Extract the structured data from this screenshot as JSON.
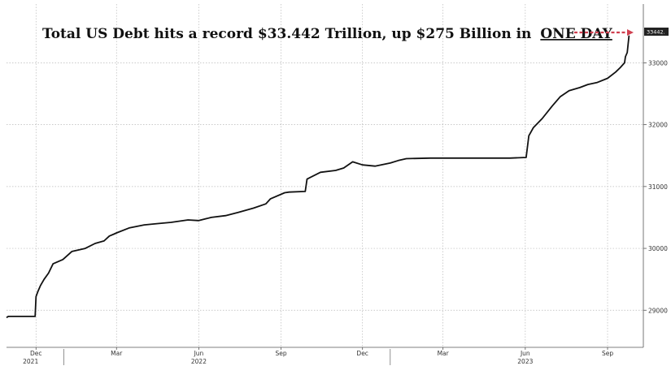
{
  "chart_data": {
    "type": "line",
    "title_prefix": "Total US Debt hits a record $33.442 Trillion, up $275 Billion in",
    "title_emphasis": "ONE DAY",
    "last_value_label": "33442.",
    "xlabel": "",
    "ylabel": "",
    "ylim": [
      28400,
      33950
    ],
    "yticks": [
      29000,
      30000,
      31000,
      32000,
      33000
    ],
    "ytick_labels": [
      "29000",
      "30000",
      "31000",
      "32000",
      "33000"
    ],
    "xlim": [
      "2021-10-29",
      "2023-10-01"
    ],
    "xticks": [
      {
        "date": "2021-12-01",
        "label": "Dec"
      },
      {
        "date": "2022-03-01",
        "label": "Mar"
      },
      {
        "date": "2022-06-01",
        "label": "Jun"
      },
      {
        "date": "2022-09-01",
        "label": "Sep"
      },
      {
        "date": "2022-12-01",
        "label": "Dec"
      },
      {
        "date": "2023-03-01",
        "label": "Mar"
      },
      {
        "date": "2023-06-01",
        "label": "Jun"
      },
      {
        "date": "2023-09-01",
        "label": "Sep"
      }
    ],
    "year_labels": [
      {
        "date": "2021-11-25",
        "label": "2021"
      },
      {
        "date": "2022-06-01",
        "label": "2022"
      },
      {
        "date": "2023-06-01",
        "label": "2023"
      }
    ],
    "year_dividers": [
      "2022-01-01",
      "2023-01-01"
    ],
    "grid": true,
    "series": [
      {
        "color": "#111111",
        "x": [
          "2021-10-29",
          "2021-10-31",
          "2021-11-30",
          "2021-12-01",
          "2021-12-03",
          "2021-12-06",
          "2021-12-10",
          "2021-12-15",
          "2021-12-20",
          "2021-12-31",
          "2022-01-10",
          "2022-01-25",
          "2022-02-05",
          "2022-02-15",
          "2022-02-21",
          "2022-02-26",
          "2022-03-01",
          "2022-03-15",
          "2022-04-01",
          "2022-04-15",
          "2022-05-01",
          "2022-05-20",
          "2022-06-01",
          "2022-06-15",
          "2022-07-01",
          "2022-07-15",
          "2022-08-01",
          "2022-08-15",
          "2022-08-20",
          "2022-09-05",
          "2022-09-10",
          "2022-09-28",
          "2022-09-30",
          "2022-10-15",
          "2022-11-01",
          "2022-11-10",
          "2022-11-20",
          "2022-12-01",
          "2022-12-15",
          "2023-01-01",
          "2023-01-10",
          "2023-01-19",
          "2023-02-15",
          "2023-03-15",
          "2023-04-15",
          "2023-05-15",
          "2023-06-02",
          "2023-06-05",
          "2023-06-10",
          "2023-06-20",
          "2023-07-01",
          "2023-07-10",
          "2023-07-20",
          "2023-08-01",
          "2023-08-10",
          "2023-08-20",
          "2023-09-01",
          "2023-09-10",
          "2023-09-15",
          "2023-09-20",
          "2023-09-21",
          "2023-09-23",
          "2023-09-25"
        ],
        "y": [
          28880,
          28900,
          28900,
          29220,
          29300,
          29400,
          29500,
          29600,
          29750,
          29820,
          29950,
          30000,
          30080,
          30120,
          30200,
          30230,
          30250,
          30330,
          30380,
          30400,
          30420,
          30460,
          30450,
          30500,
          30530,
          30580,
          30650,
          30720,
          30800,
          30900,
          30910,
          30920,
          31120,
          31230,
          31260,
          31300,
          31400,
          31350,
          31330,
          31380,
          31420,
          31450,
          31460,
          31460,
          31460,
          31460,
          31470,
          31820,
          31950,
          32100,
          32300,
          32450,
          32550,
          32600,
          32650,
          32680,
          32750,
          32850,
          32920,
          33000,
          33100,
          33167,
          33442
        ]
      }
    ]
  }
}
